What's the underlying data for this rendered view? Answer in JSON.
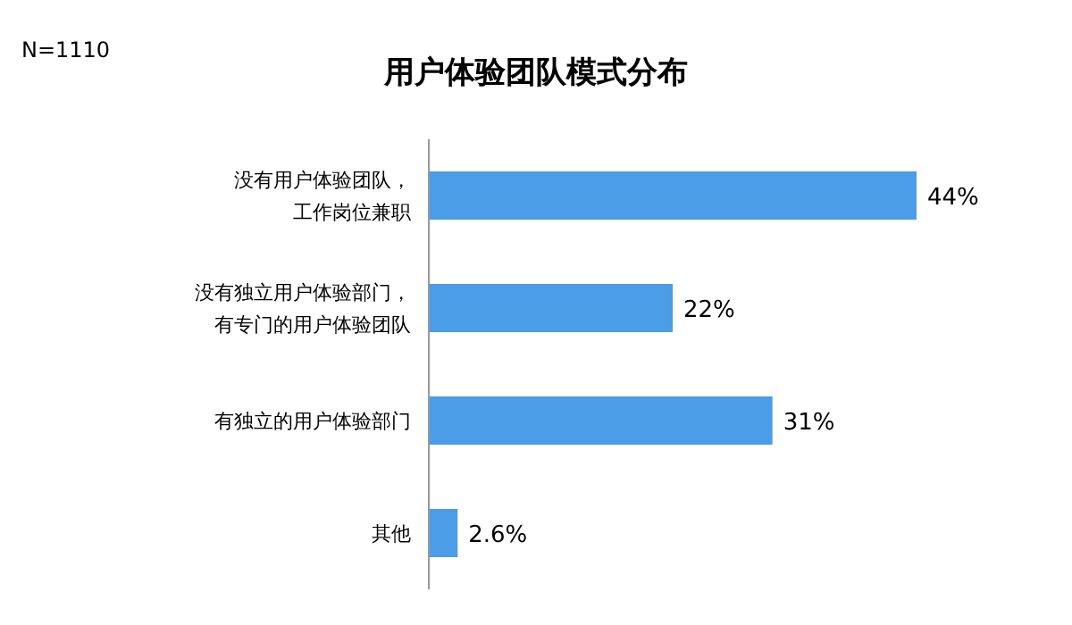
{
  "chart_data": {
    "type": "bar",
    "orientation": "horizontal",
    "title": "用户体验团队模式分布",
    "annotations": [
      "N=1110"
    ],
    "categories": [
      "没有用户体验团队，工作岗位兼职",
      "没有独立用户体验部门，有专门的用户体验团队",
      "有独立的用户体验部门",
      "其他"
    ],
    "values": [
      44,
      22,
      31,
      2.6
    ],
    "value_labels": [
      "44%",
      "22%",
      "31%",
      "2.6%"
    ],
    "color": "#4a9de6"
  }
}
